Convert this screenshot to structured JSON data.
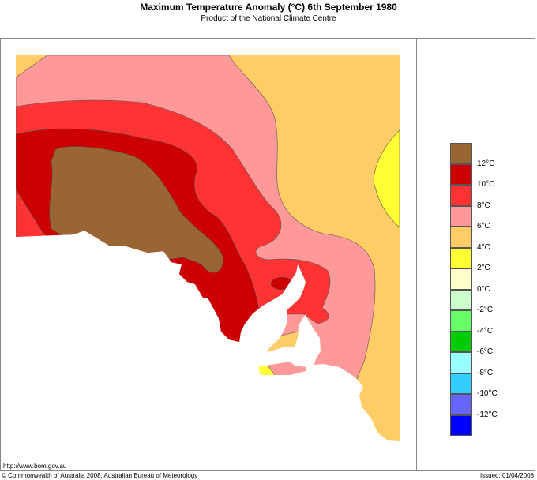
{
  "title": "Maximum Temperature Anomaly (°C)  6th September 1980",
  "subtitle": "Product of the National Climate Centre",
  "map": {
    "ocean_color": "#ffffff",
    "boundary_color": "#555555"
  },
  "legend": {
    "colors": [
      "#996633",
      "#cc0000",
      "#ff3333",
      "#ff9999",
      "#ffcc66",
      "#ffff33",
      "#ffffcc",
      "#ccffcc",
      "#66ff66",
      "#00cc00",
      "#99ffff",
      "#33ccff",
      "#6666ff",
      "#0000ff"
    ],
    "labels": [
      "12°C",
      "10°C",
      "8°C",
      "6°C",
      "4°C",
      "2°C",
      "0°C",
      "-2°C",
      "-4°C",
      "-6°C",
      "-8°C",
      "-10°C",
      "-12°C"
    ]
  },
  "footer": {
    "url": "http://www.bom.gov.au",
    "copyright": "© Commonwealth of Australia 2008, Australian Bureau of Meteorology",
    "issued": "Issued: 01/04/2008"
  }
}
